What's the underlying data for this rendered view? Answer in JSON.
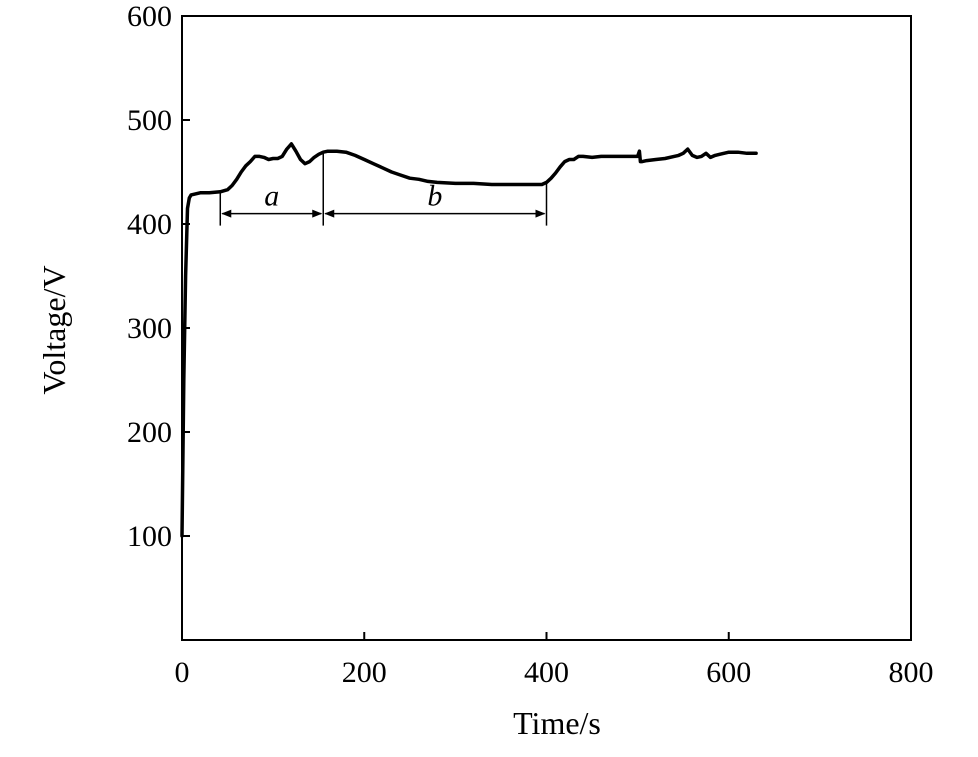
{
  "chart_data": {
    "type": "line",
    "title": "",
    "xlabel": "Time/s",
    "ylabel": "Voltage/V",
    "xlim": [
      0,
      800
    ],
    "ylim": [
      0,
      600
    ],
    "x_ticks": [
      0,
      200,
      400,
      600,
      800
    ],
    "y_ticks": [
      100,
      200,
      300,
      400,
      500,
      600
    ],
    "x_tick_labels": [
      "0",
      "200",
      "400",
      "600",
      "800"
    ],
    "y_tick_labels": [
      "100",
      "200",
      "300",
      "400",
      "500",
      "600"
    ],
    "grid": false,
    "legend": "none",
    "series": [
      {
        "x": [
          0,
          2,
          4,
          6,
          8,
          10,
          20,
          30,
          42,
          50,
          55,
          60,
          65,
          70,
          75,
          80,
          85,
          90,
          95,
          100,
          105,
          110,
          115,
          120,
          125,
          130,
          135,
          140,
          145,
          150,
          155,
          160,
          170,
          180,
          190,
          200,
          210,
          220,
          230,
          240,
          250,
          260,
          270,
          280,
          300,
          320,
          340,
          360,
          380,
          395,
          400,
          405,
          410,
          415,
          420,
          425,
          430,
          435,
          440,
          450,
          460,
          470,
          480,
          490,
          500,
          502,
          503,
          505,
          510,
          520,
          530,
          540,
          545,
          550,
          555,
          560,
          565,
          570,
          575,
          580,
          585,
          590,
          600,
          610,
          620,
          630
        ],
        "y": [
          100,
          250,
          350,
          415,
          425,
          428,
          430,
          430,
          431,
          433,
          437,
          443,
          450,
          456,
          460,
          465,
          465,
          464,
          462,
          463,
          463,
          465,
          472,
          477,
          470,
          462,
          458,
          460,
          464,
          467,
          469,
          470,
          470,
          469,
          466,
          462,
          458,
          454,
          450,
          447,
          444,
          443,
          441,
          440,
          439,
          439,
          438,
          438,
          438,
          438,
          440,
          444,
          449,
          455,
          460,
          462,
          462,
          465,
          465,
          464,
          465,
          465,
          465,
          465,
          465,
          470,
          460,
          460,
          461,
          462,
          463,
          465,
          466,
          468,
          472,
          466,
          464,
          465,
          468,
          464,
          466,
          467,
          469,
          469,
          468,
          468
        ]
      }
    ],
    "annotations": [
      {
        "label": "a",
        "x_start": 42,
        "x_end": 155,
        "y": 410
      },
      {
        "label": "b",
        "x_start": 155,
        "x_end": 400,
        "y": 410
      }
    ]
  },
  "colors": {
    "line": "#000000",
    "axes": "#000000",
    "background": "#ffffff"
  }
}
